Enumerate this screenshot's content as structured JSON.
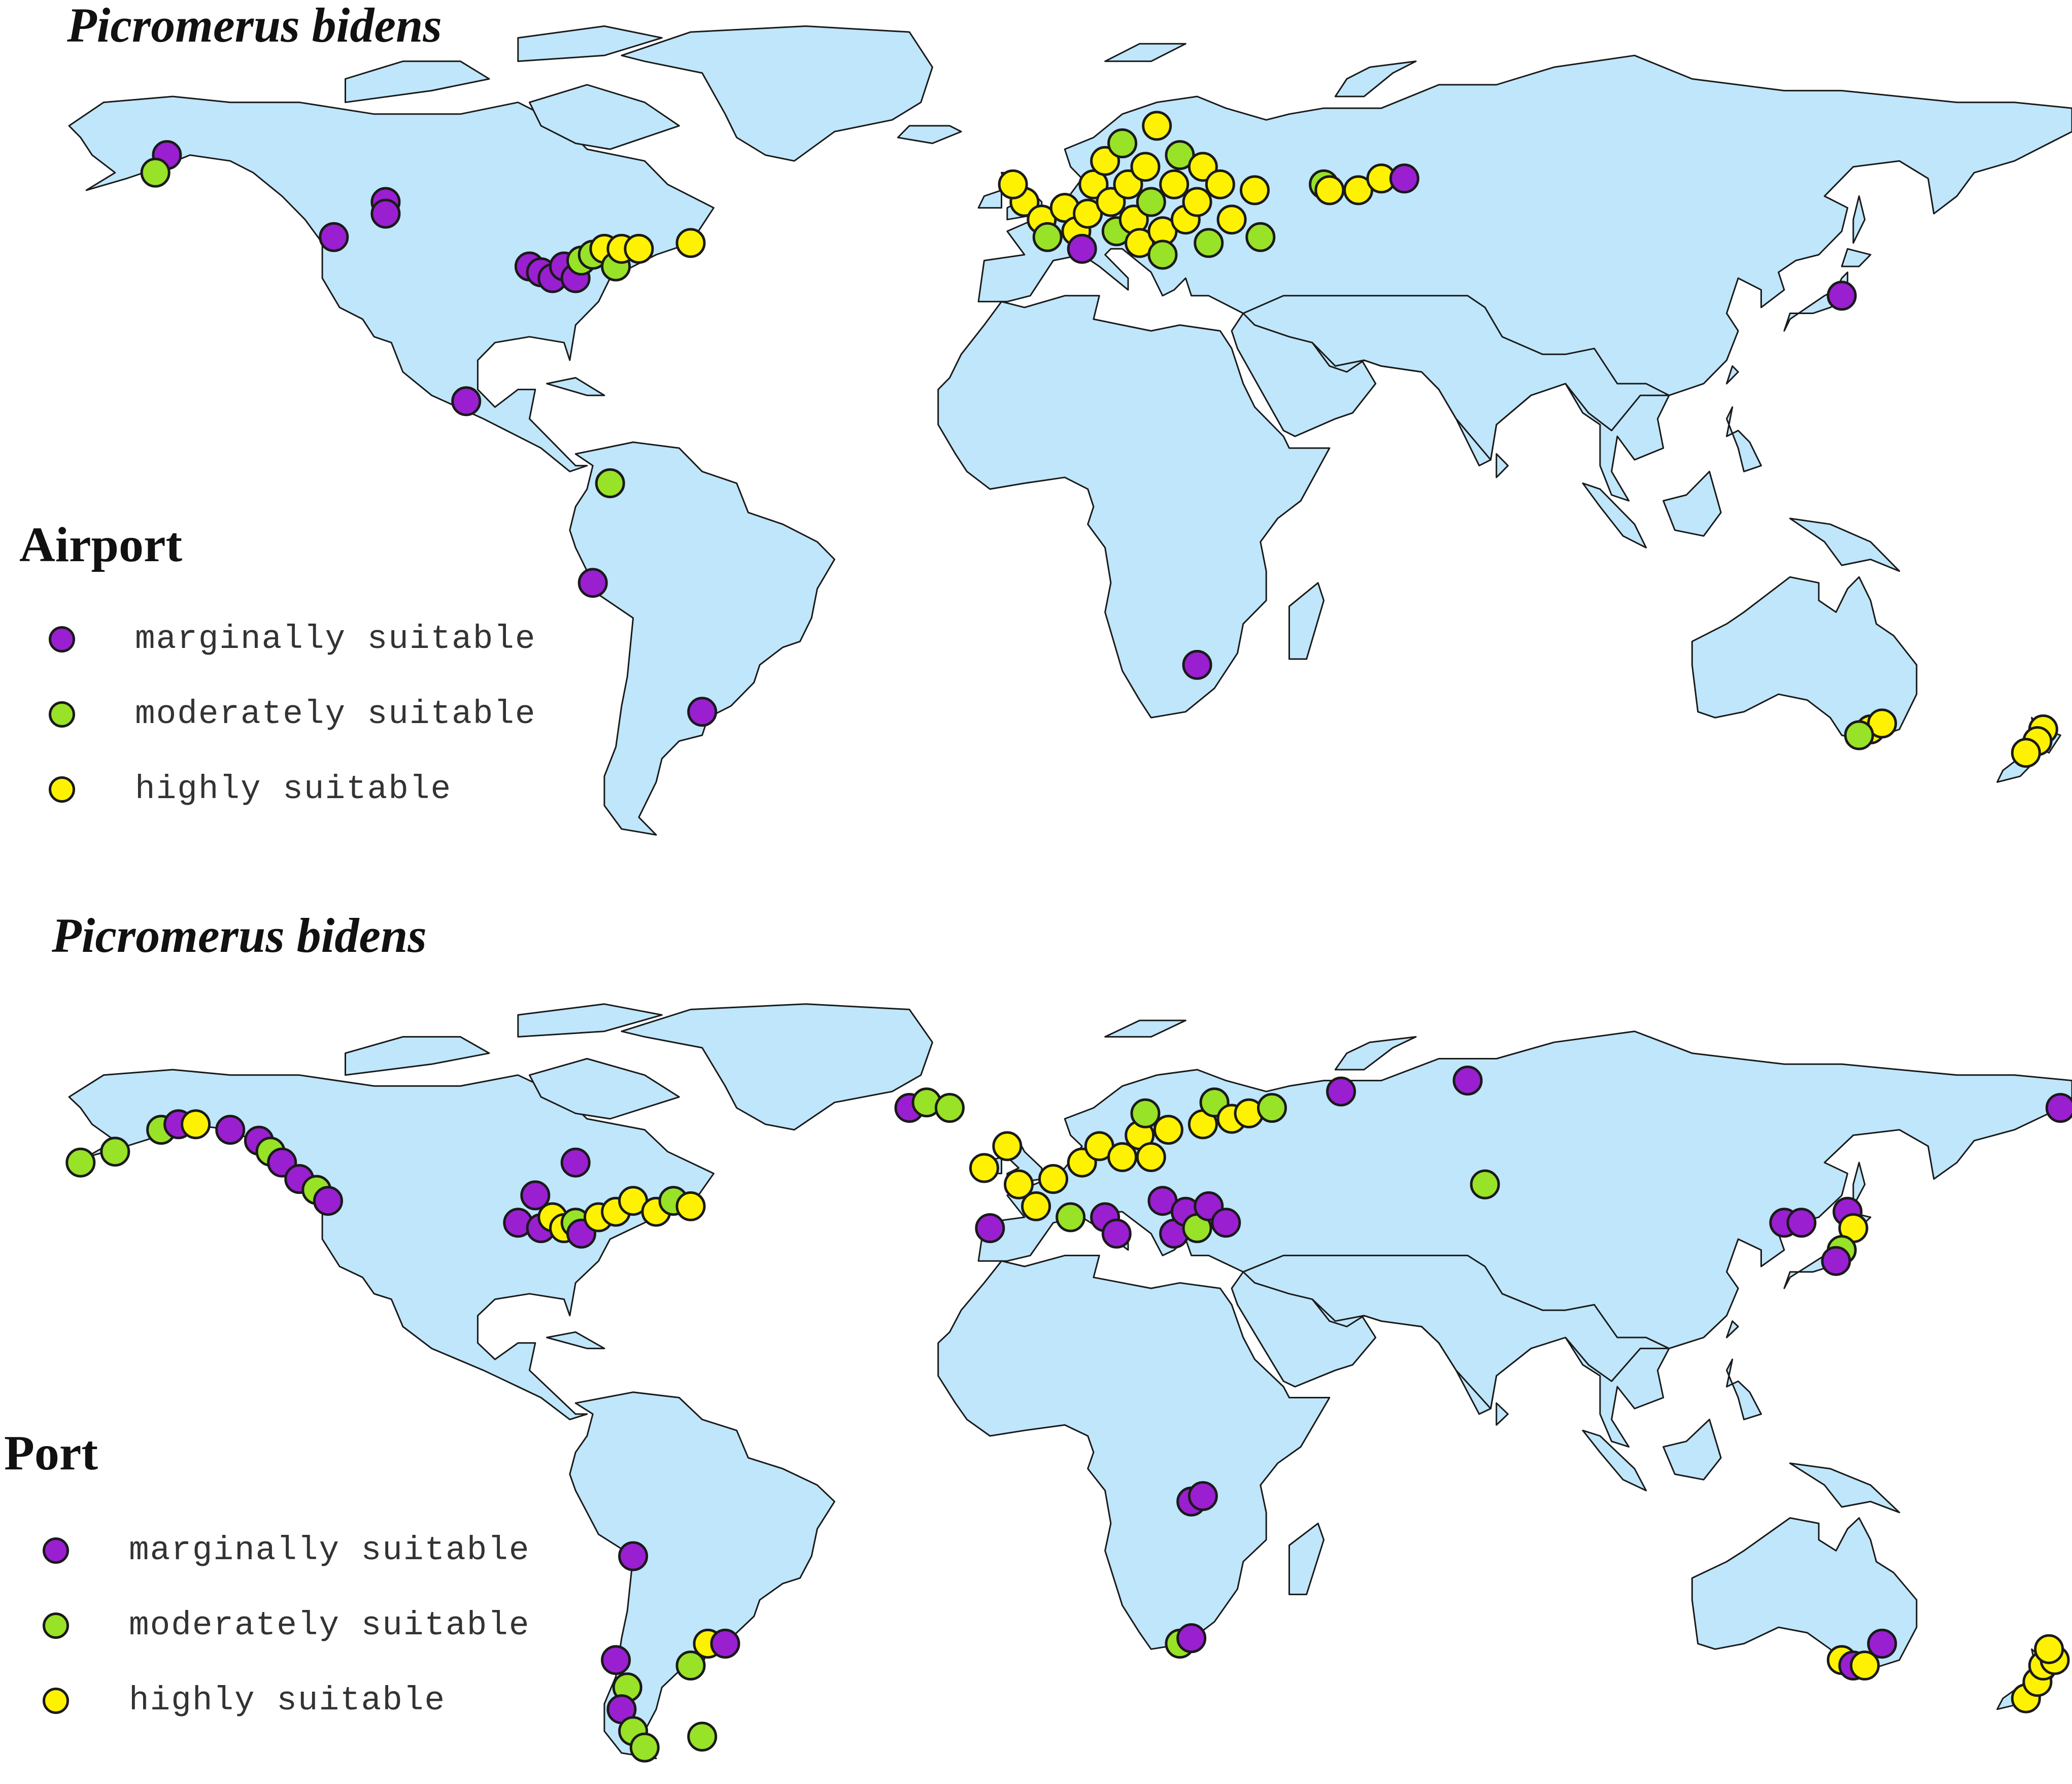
{
  "colors": {
    "land": "#bfe6fa",
    "outline": "#1a1a1a",
    "marginally": "#9a1fd0",
    "moderately": "#98e227",
    "highly": "#fff200"
  },
  "legend": [
    {
      "key": "marginally",
      "label": "marginally suitable"
    },
    {
      "key": "moderately",
      "label": "moderately suitable"
    },
    {
      "key": "highly",
      "label": "highly suitable"
    }
  ],
  "panels": [
    {
      "title": "Picromerus bidens",
      "label": "Airport",
      "points": [
        {
          "lon": -151,
          "lat": 61,
          "cat": "marginally"
        },
        {
          "lon": -153,
          "lat": 58,
          "cat": "moderately"
        },
        {
          "lon": -122,
          "lat": 47,
          "cat": "marginally"
        },
        {
          "lon": -113,
          "lat": 53,
          "cat": "marginally"
        },
        {
          "lon": -113,
          "lat": 51,
          "cat": "marginally"
        },
        {
          "lon": -88,
          "lat": 42,
          "cat": "marginally"
        },
        {
          "lon": -86,
          "lat": 41,
          "cat": "marginally"
        },
        {
          "lon": -84,
          "lat": 40,
          "cat": "marginally"
        },
        {
          "lon": -82,
          "lat": 42,
          "cat": "marginally"
        },
        {
          "lon": -80,
          "lat": 40,
          "cat": "marginally"
        },
        {
          "lon": -79,
          "lat": 43,
          "cat": "moderately"
        },
        {
          "lon": -77,
          "lat": 44,
          "cat": "moderately"
        },
        {
          "lon": -75,
          "lat": 45,
          "cat": "highly"
        },
        {
          "lon": -73,
          "lat": 42,
          "cat": "moderately"
        },
        {
          "lon": -72,
          "lat": 45,
          "cat": "highly"
        },
        {
          "lon": -69,
          "lat": 45,
          "cat": "highly"
        },
        {
          "lon": -60,
          "lat": 46,
          "cat": "highly"
        },
        {
          "lon": -99,
          "lat": 19,
          "cat": "marginally"
        },
        {
          "lon": -74,
          "lat": 5,
          "cat": "moderately"
        },
        {
          "lon": -77,
          "lat": -12,
          "cat": "marginally"
        },
        {
          "lon": -58,
          "lat": -34,
          "cat": "marginally"
        },
        {
          "lon": -2,
          "lat": 53,
          "cat": "highly"
        },
        {
          "lon": -4,
          "lat": 56,
          "cat": "highly"
        },
        {
          "lon": 1,
          "lat": 50,
          "cat": "highly"
        },
        {
          "lon": 2,
          "lat": 47,
          "cat": "moderately"
        },
        {
          "lon": 5,
          "lat": 52,
          "cat": "highly"
        },
        {
          "lon": 7,
          "lat": 48,
          "cat": "highly"
        },
        {
          "lon": 8,
          "lat": 45,
          "cat": "marginally"
        },
        {
          "lon": 9,
          "lat": 51,
          "cat": "highly"
        },
        {
          "lon": 10,
          "lat": 56,
          "cat": "highly"
        },
        {
          "lon": 12,
          "lat": 60,
          "cat": "highly"
        },
        {
          "lon": 13,
          "lat": 53,
          "cat": "highly"
        },
        {
          "lon": 14,
          "lat": 48,
          "cat": "moderately"
        },
        {
          "lon": 15,
          "lat": 63,
          "cat": "moderately"
        },
        {
          "lon": 16,
          "lat": 56,
          "cat": "highly"
        },
        {
          "lon": 17,
          "lat": 50,
          "cat": "highly"
        },
        {
          "lon": 18,
          "lat": 46,
          "cat": "highly"
        },
        {
          "lon": 19,
          "lat": 59,
          "cat": "highly"
        },
        {
          "lon": 20,
          "lat": 53,
          "cat": "moderately"
        },
        {
          "lon": 21,
          "lat": 66,
          "cat": "highly"
        },
        {
          "lon": 22,
          "lat": 48,
          "cat": "highly"
        },
        {
          "lon": 22,
          "lat": 44,
          "cat": "moderately"
        },
        {
          "lon": 24,
          "lat": 56,
          "cat": "highly"
        },
        {
          "lon": 25,
          "lat": 61,
          "cat": "moderately"
        },
        {
          "lon": 26,
          "lat": 50,
          "cat": "highly"
        },
        {
          "lon": 28,
          "lat": 53,
          "cat": "highly"
        },
        {
          "lon": 29,
          "lat": 59,
          "cat": "highly"
        },
        {
          "lon": 30,
          "lat": 46,
          "cat": "moderately"
        },
        {
          "lon": 32,
          "lat": 56,
          "cat": "highly"
        },
        {
          "lon": 34,
          "lat": 50,
          "cat": "highly"
        },
        {
          "lon": 38,
          "lat": 55,
          "cat": "highly"
        },
        {
          "lon": 39,
          "lat": 47,
          "cat": "moderately"
        },
        {
          "lon": 50,
          "lat": 56,
          "cat": "moderately"
        },
        {
          "lon": 51,
          "lat": 55,
          "cat": "highly"
        },
        {
          "lon": 56,
          "lat": 55,
          "cat": "highly"
        },
        {
          "lon": 60,
          "lat": 57,
          "cat": "highly"
        },
        {
          "lon": 64,
          "lat": 57,
          "cat": "marginally"
        },
        {
          "lon": 140,
          "lat": 37,
          "cat": "marginally"
        },
        {
          "lon": 28,
          "lat": -26,
          "cat": "marginally"
        },
        {
          "lon": 145,
          "lat": -37,
          "cat": "highly"
        },
        {
          "lon": 147,
          "lat": -36,
          "cat": "highly"
        },
        {
          "lon": 143,
          "lat": -38,
          "cat": "moderately"
        },
        {
          "lon": 175,
          "lat": -37,
          "cat": "highly"
        },
        {
          "lon": 174,
          "lat": -39,
          "cat": "highly"
        },
        {
          "lon": 172,
          "lat": -41,
          "cat": "highly"
        }
      ]
    },
    {
      "title": "Picromerus bidens",
      "label": "Port",
      "points": [
        {
          "lon": -166,
          "lat": 54,
          "cat": "moderately"
        },
        {
          "lon": -160,
          "lat": 56,
          "cat": "moderately"
        },
        {
          "lon": -152,
          "lat": 60,
          "cat": "moderately"
        },
        {
          "lon": -149,
          "lat": 61,
          "cat": "marginally"
        },
        {
          "lon": -146,
          "lat": 61,
          "cat": "highly"
        },
        {
          "lon": -140,
          "lat": 60,
          "cat": "marginally"
        },
        {
          "lon": -135,
          "lat": 58,
          "cat": "marginally"
        },
        {
          "lon": -133,
          "lat": 56,
          "cat": "moderately"
        },
        {
          "lon": -131,
          "lat": 54,
          "cat": "marginally"
        },
        {
          "lon": -128,
          "lat": 51,
          "cat": "marginally"
        },
        {
          "lon": -125,
          "lat": 49,
          "cat": "moderately"
        },
        {
          "lon": -123,
          "lat": 47,
          "cat": "marginally"
        },
        {
          "lon": -80,
          "lat": 54,
          "cat": "marginally"
        },
        {
          "lon": -87,
          "lat": 48,
          "cat": "marginally"
        },
        {
          "lon": -90,
          "lat": 43,
          "cat": "marginally"
        },
        {
          "lon": -86,
          "lat": 42,
          "cat": "marginally"
        },
        {
          "lon": -84,
          "lat": 44,
          "cat": "highly"
        },
        {
          "lon": -82,
          "lat": 42,
          "cat": "highly"
        },
        {
          "lon": -80,
          "lat": 43,
          "cat": "moderately"
        },
        {
          "lon": -79,
          "lat": 41,
          "cat": "marginally"
        },
        {
          "lon": -76,
          "lat": 44,
          "cat": "highly"
        },
        {
          "lon": -73,
          "lat": 45,
          "cat": "highly"
        },
        {
          "lon": -70,
          "lat": 47,
          "cat": "highly"
        },
        {
          "lon": -66,
          "lat": 45,
          "cat": "highly"
        },
        {
          "lon": -63,
          "lat": 47,
          "cat": "moderately"
        },
        {
          "lon": -60,
          "lat": 46,
          "cat": "highly"
        },
        {
          "lon": -70,
          "lat": -18,
          "cat": "marginally"
        },
        {
          "lon": -73,
          "lat": -37,
          "cat": "marginally"
        },
        {
          "lon": -71,
          "lat": -42,
          "cat": "moderately"
        },
        {
          "lon": -72,
          "lat": -46,
          "cat": "marginally"
        },
        {
          "lon": -70,
          "lat": -50,
          "cat": "moderately"
        },
        {
          "lon": -68,
          "lat": -53,
          "cat": "moderately"
        },
        {
          "lon": -60,
          "lat": -38,
          "cat": "moderately"
        },
        {
          "lon": -57,
          "lat": -34,
          "cat": "highly"
        },
        {
          "lon": -54,
          "lat": -34,
          "cat": "marginally"
        },
        {
          "lon": -58,
          "lat": -51,
          "cat": "moderately"
        },
        {
          "lon": -22,
          "lat": 64,
          "cat": "marginally"
        },
        {
          "lon": -19,
          "lat": 65,
          "cat": "moderately"
        },
        {
          "lon": -15,
          "lat": 64,
          "cat": "moderately"
        },
        {
          "lon": -9,
          "lat": 53,
          "cat": "highly"
        },
        {
          "lon": -5,
          "lat": 57,
          "cat": "highly"
        },
        {
          "lon": -3,
          "lat": 50,
          "cat": "highly"
        },
        {
          "lon": -8,
          "lat": 42,
          "cat": "marginally"
        },
        {
          "lon": 0,
          "lat": 46,
          "cat": "highly"
        },
        {
          "lon": 3,
          "lat": 51,
          "cat": "highly"
        },
        {
          "lon": 6,
          "lat": 44,
          "cat": "moderately"
        },
        {
          "lon": 8,
          "lat": 54,
          "cat": "highly"
        },
        {
          "lon": 11,
          "lat": 57,
          "cat": "highly"
        },
        {
          "lon": 12,
          "lat": 44,
          "cat": "marginally"
        },
        {
          "lon": 14,
          "lat": 41,
          "cat": "marginally"
        },
        {
          "lon": 15,
          "lat": 55,
          "cat": "highly"
        },
        {
          "lon": 18,
          "lat": 59,
          "cat": "highly"
        },
        {
          "lon": 19,
          "lat": 63,
          "cat": "moderately"
        },
        {
          "lon": 20,
          "lat": 55,
          "cat": "highly"
        },
        {
          "lon": 22,
          "lat": 47,
          "cat": "marginally"
        },
        {
          "lon": 23,
          "lat": 60,
          "cat": "highly"
        },
        {
          "lon": 24,
          "lat": 41,
          "cat": "marginally"
        },
        {
          "lon": 26,
          "lat": 45,
          "cat": "marginally"
        },
        {
          "lon": 28,
          "lat": 42,
          "cat": "moderately"
        },
        {
          "lon": 29,
          "lat": 61,
          "cat": "highly"
        },
        {
          "lon": 30,
          "lat": 46,
          "cat": "marginally"
        },
        {
          "lon": 31,
          "lat": 65,
          "cat": "moderately"
        },
        {
          "lon": 33,
          "lat": 43,
          "cat": "marginally"
        },
        {
          "lon": 34,
          "lat": 62,
          "cat": "highly"
        },
        {
          "lon": 37,
          "lat": 63,
          "cat": "highly"
        },
        {
          "lon": 41,
          "lat": 64,
          "cat": "moderately"
        },
        {
          "lon": 53,
          "lat": 67,
          "cat": "marginally"
        },
        {
          "lon": 75,
          "lat": 69,
          "cat": "marginally"
        },
        {
          "lon": 78,
          "lat": 50,
          "cat": "moderately"
        },
        {
          "lon": 130,
          "lat": 43,
          "cat": "marginally"
        },
        {
          "lon": 133,
          "lat": 43,
          "cat": "marginally"
        },
        {
          "lon": 141,
          "lat": 45,
          "cat": "marginally"
        },
        {
          "lon": 142,
          "lat": 42,
          "cat": "highly"
        },
        {
          "lon": 140,
          "lat": 38,
          "cat": "moderately"
        },
        {
          "lon": 139,
          "lat": 36,
          "cat": "marginally"
        },
        {
          "lon": 178,
          "lat": 64,
          "cat": "marginally"
        },
        {
          "lon": 27,
          "lat": -8,
          "cat": "marginally"
        },
        {
          "lon": 29,
          "lat": -7,
          "cat": "marginally"
        },
        {
          "lon": 25,
          "lat": -34,
          "cat": "moderately"
        },
        {
          "lon": 27,
          "lat": -33,
          "cat": "marginally"
        },
        {
          "lon": 140,
          "lat": -37,
          "cat": "highly"
        },
        {
          "lon": 142,
          "lat": -38,
          "cat": "marginally"
        },
        {
          "lon": 144,
          "lat": -38,
          "cat": "highly"
        },
        {
          "lon": 147,
          "lat": -34,
          "cat": "marginally"
        },
        {
          "lon": 172,
          "lat": -44,
          "cat": "highly"
        },
        {
          "lon": 174,
          "lat": -41,
          "cat": "highly"
        },
        {
          "lon": 175,
          "lat": -38,
          "cat": "highly"
        },
        {
          "lon": 177,
          "lat": -37,
          "cat": "highly"
        },
        {
          "lon": 176,
          "lat": -35,
          "cat": "highly"
        }
      ]
    }
  ]
}
